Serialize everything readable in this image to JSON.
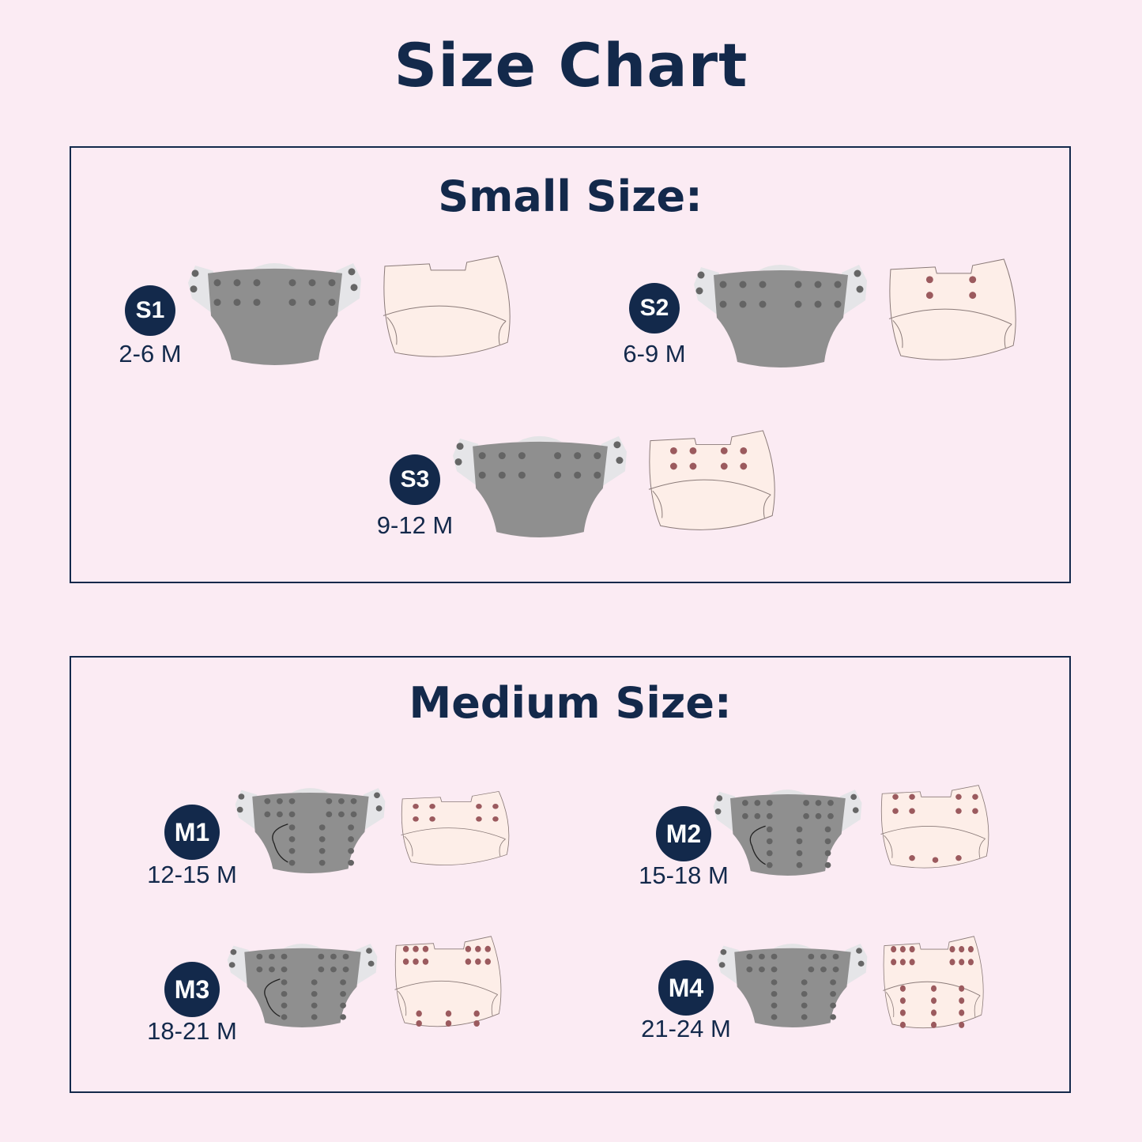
{
  "title": "Size Chart",
  "small": {
    "heading": "Small Size:",
    "sizes": [
      {
        "code": "S1",
        "age": "2-6 M"
      },
      {
        "code": "S2",
        "age": "6-9 M"
      },
      {
        "code": "S3",
        "age": "9-12 M"
      }
    ]
  },
  "medium": {
    "heading": "Medium Size:",
    "sizes": [
      {
        "code": "M1",
        "age": "12-15 M"
      },
      {
        "code": "M2",
        "age": "15-18 M"
      },
      {
        "code": "M3",
        "age": "18-21 M"
      },
      {
        "code": "M4",
        "age": "21-24 M"
      }
    ]
  },
  "colors": {
    "accent": "#13294b",
    "background": "#fbebf3",
    "diaper_front": "#8f8f8f",
    "diaper_back": "#fdeee8",
    "snap_back": "#9b5a5e"
  }
}
